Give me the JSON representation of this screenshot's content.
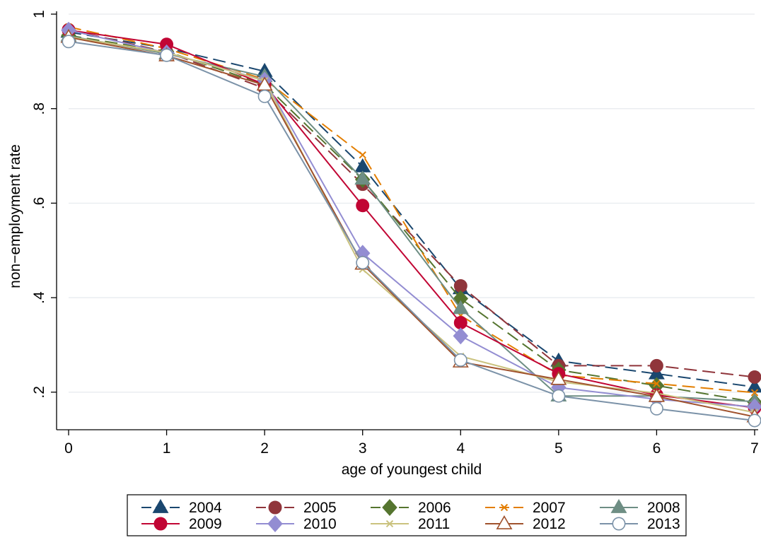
{
  "chart_data": {
    "type": "line",
    "title": "",
    "xlabel": "age of youngest child",
    "ylabel": "non−employment rate",
    "x": [
      0,
      1,
      2,
      3,
      4,
      5,
      6,
      7
    ],
    "xlim": [
      0,
      7
    ],
    "ylim": [
      0.125,
      1.0
    ],
    "x_ticks": [
      0,
      1,
      2,
      3,
      4,
      5,
      6,
      7
    ],
    "x_tick_labels": [
      "0",
      "1",
      "2",
      "3",
      "4",
      "5",
      "6",
      "7"
    ],
    "y_ticks": [
      0.2,
      0.4,
      0.6,
      0.8,
      1.0
    ],
    "y_tick_labels": [
      ".2",
      ".4",
      ".6",
      ".8",
      "1"
    ],
    "grid": true,
    "legend_position": "bottom",
    "series": [
      {
        "name": "2004",
        "color": "#1a476f",
        "dash": "long-dash",
        "marker": "triangle-filled",
        "values": [
          0.962,
          0.928,
          0.879,
          0.677,
          0.419,
          0.266,
          0.239,
          0.211
        ]
      },
      {
        "name": "2005",
        "color": "#90353b",
        "dash": "long-dash",
        "marker": "circle-filled",
        "values": [
          0.967,
          0.92,
          0.843,
          0.64,
          0.425,
          0.256,
          0.256,
          0.232
        ]
      },
      {
        "name": "2006",
        "color": "#55752f",
        "dash": "long-dash",
        "marker": "diamond-filled",
        "values": [
          0.955,
          0.921,
          0.851,
          0.65,
          0.398,
          0.247,
          0.214,
          0.179
        ]
      },
      {
        "name": "2007",
        "color": "#e37e00",
        "dash": "long-dash",
        "marker": "x",
        "values": [
          0.973,
          0.927,
          0.862,
          0.702,
          0.362,
          0.236,
          0.218,
          0.199
        ]
      },
      {
        "name": "2008",
        "color": "#6e8e84",
        "dash": "solid",
        "marker": "triangle-filled",
        "values": [
          0.954,
          0.916,
          0.868,
          0.651,
          0.377,
          0.192,
          0.192,
          0.18
        ]
      },
      {
        "name": "2009",
        "color": "#c10534",
        "dash": "solid",
        "marker": "circle-filled",
        "values": [
          0.966,
          0.936,
          0.851,
          0.595,
          0.347,
          0.239,
          0.194,
          0.167
        ]
      },
      {
        "name": "2010",
        "color": "#938dd2",
        "dash": "solid",
        "marker": "diamond-filled",
        "values": [
          0.966,
          0.918,
          0.86,
          0.494,
          0.319,
          0.21,
          0.185,
          0.169
        ]
      },
      {
        "name": "2011",
        "color": "#cac27e",
        "dash": "solid",
        "marker": "x",
        "values": [
          0.952,
          0.919,
          0.859,
          0.46,
          0.276,
          0.222,
          0.198,
          0.157
        ]
      },
      {
        "name": "2012",
        "color": "#a0522d",
        "dash": "solid",
        "marker": "triangle-hollow",
        "values": [
          0.951,
          0.912,
          0.85,
          0.471,
          0.264,
          0.227,
          0.191,
          0.148
        ]
      },
      {
        "name": "2013",
        "color": "#7b92a8",
        "dash": "solid",
        "marker": "circle-hollow",
        "values": [
          0.942,
          0.913,
          0.826,
          0.474,
          0.268,
          0.192,
          0.165,
          0.14
        ]
      }
    ]
  }
}
